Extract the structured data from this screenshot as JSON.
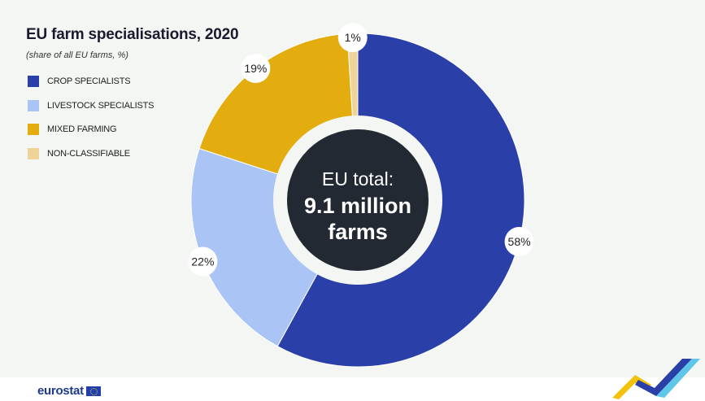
{
  "chart_data": {
    "type": "pie",
    "donut": true,
    "title": "EU farm specialisations, 2020",
    "subtitle": "(share of all EU farms, %)",
    "legend_position": "top-left",
    "categories": [
      "CROP SPECIALISTS",
      "LIVESTOCK SPECIALISTS",
      "MIXED FARMING",
      "NON-CLASSIFIABLE"
    ],
    "values": [
      58,
      22,
      19,
      1
    ],
    "labels": [
      "58%",
      "22%",
      "19%",
      "1%"
    ],
    "colors": [
      "#2a3fa8",
      "#a9c4f5",
      "#e3ad0f",
      "#efd49a"
    ],
    "center_label": {
      "line1": "EU total:",
      "line2": "9.1 million",
      "line3": "farms"
    }
  },
  "footer": {
    "brand": "eurostat",
    "flag_icon": "eu-flag-icon",
    "swoosh_icon": "eurostat-swoosh-icon"
  }
}
